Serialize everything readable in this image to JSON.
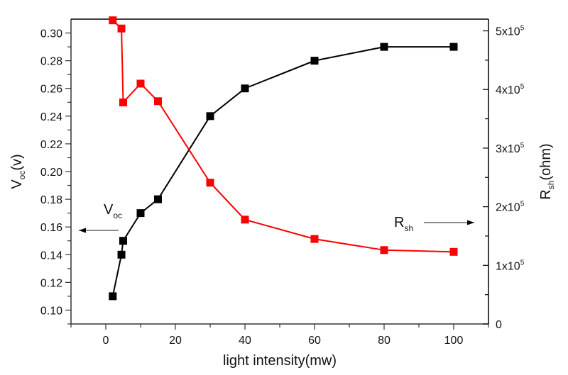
{
  "chart_data": {
    "type": "line",
    "title": "",
    "xlabel": "light intensity(mw)",
    "ylabel_left": {
      "main": "V",
      "sub": "oc",
      "suffix": "(v)"
    },
    "ylabel_right": {
      "main": "R",
      "sub": "sh",
      "suffix": "(ohm)"
    },
    "xlim": [
      -10,
      110
    ],
    "ylim_left": [
      0.09,
      0.31
    ],
    "ylim_right": [
      0,
      520000
    ],
    "x_ticks": [
      0,
      20,
      40,
      60,
      80,
      100
    ],
    "x_tick_labels": [
      "0",
      "20",
      "40",
      "60",
      "80",
      "100"
    ],
    "y_left_ticks": [
      0.1,
      0.12,
      0.14,
      0.16,
      0.18,
      0.2,
      0.22,
      0.24,
      0.26,
      0.28,
      0.3
    ],
    "y_left_tick_labels": [
      "0.10",
      "0.12",
      "0.14",
      "0.16",
      "0.18",
      "0.20",
      "0.22",
      "0.24",
      "0.26",
      "0.28",
      "0.30"
    ],
    "y_right_ticks": [
      0,
      100000,
      200000,
      300000,
      400000,
      500000
    ],
    "y_right_tick_labels": [
      {
        "base": "0",
        "exp": ""
      },
      {
        "base": "1x10",
        "exp": "5"
      },
      {
        "base": "2x10",
        "exp": "5"
      },
      {
        "base": "3x10",
        "exp": "5"
      },
      {
        "base": "4x10",
        "exp": "5"
      },
      {
        "base": "5x10",
        "exp": "5"
      }
    ],
    "grid": false,
    "series": [
      {
        "name": "Voc",
        "axis": "left",
        "color": "#000000",
        "marker": "square",
        "x": [
          2,
          4.5,
          5,
          10,
          15,
          30,
          40,
          60,
          80,
          100
        ],
        "values": [
          0.11,
          0.14,
          0.15,
          0.17,
          0.18,
          0.24,
          0.26,
          0.28,
          0.29,
          0.29
        ]
      },
      {
        "name": "Rsh",
        "axis": "right",
        "color": "#ff0000",
        "marker": "square",
        "x": [
          2,
          4.5,
          5,
          10,
          15,
          30,
          40,
          60,
          80,
          100
        ],
        "values": [
          518000,
          504000,
          378000,
          410000,
          380000,
          241000,
          178000,
          145000,
          126000,
          123000
        ]
      }
    ],
    "annotations": [
      {
        "name": "voc-annotation",
        "main": "V",
        "sub": "oc",
        "arrow": "left"
      },
      {
        "name": "rsh-annotation",
        "main": "R",
        "sub": "sh",
        "arrow": "right"
      }
    ]
  }
}
